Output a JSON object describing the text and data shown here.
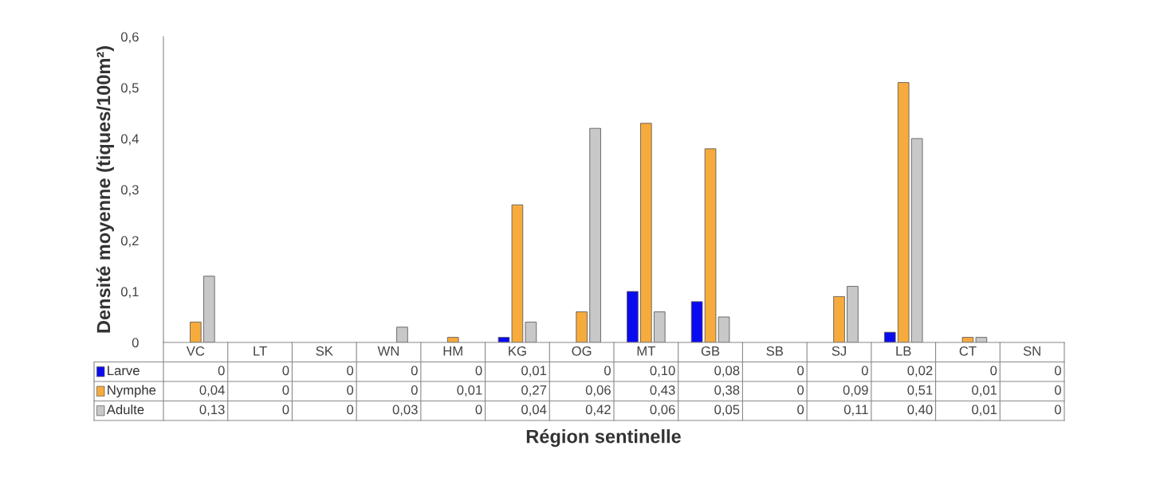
{
  "chart_data": {
    "type": "bar",
    "xlabel": "Région sentinelle",
    "ylabel": "Densité moyenne (tiques/100m²)",
    "categories": [
      "VC",
      "LT",
      "SK",
      "WN",
      "HM",
      "KG",
      "OG",
      "MT",
      "GB",
      "SB",
      "SJ",
      "LB",
      "CT",
      "SN"
    ],
    "series": [
      {
        "name": "Larve",
        "color": "#0a0af0",
        "values": [
          0,
          0,
          0,
          0,
          0,
          0.01,
          0,
          0.1,
          0.08,
          0,
          0,
          0.02,
          0,
          0
        ],
        "value_labels": [
          "0",
          "0",
          "0",
          "0",
          "0",
          "0,01",
          "0",
          "0,10",
          "0,08",
          "0",
          "0",
          "0,02",
          "0",
          "0"
        ]
      },
      {
        "name": "Nymphe",
        "color": "#f7ab3c",
        "values": [
          0.04,
          0,
          0,
          0,
          0.01,
          0.27,
          0.06,
          0.43,
          0.38,
          0,
          0.09,
          0.51,
          0.01,
          0
        ],
        "value_labels": [
          "0,04",
          "0",
          "0",
          "0",
          "0,01",
          "0,27",
          "0,06",
          "0,43",
          "0,38",
          "0",
          "0,09",
          "0,51",
          "0,01",
          "0"
        ]
      },
      {
        "name": "Adulte",
        "color": "#c8c8c8",
        "values": [
          0.13,
          0,
          0,
          0.03,
          0,
          0.04,
          0.42,
          0.06,
          0.05,
          0,
          0.11,
          0.4,
          0.01,
          0
        ],
        "value_labels": [
          "0,13",
          "0",
          "0",
          "0,03",
          "0",
          "0,04",
          "0,42",
          "0,06",
          "0,05",
          "0",
          "0,11",
          "0,40",
          "0,01",
          "0"
        ]
      }
    ],
    "ylim": [
      0,
      0.6
    ],
    "yticks": [
      {
        "value": 0,
        "label": "0"
      },
      {
        "value": 0.1,
        "label": "0,1"
      },
      {
        "value": 0.2,
        "label": "0,2"
      },
      {
        "value": 0.3,
        "label": "0,3"
      },
      {
        "value": 0.4,
        "label": "0,4"
      },
      {
        "value": 0.5,
        "label": "0,5"
      },
      {
        "value": 0.6,
        "label": "0,6"
      }
    ],
    "grid": false,
    "legend": "bottom left"
  }
}
